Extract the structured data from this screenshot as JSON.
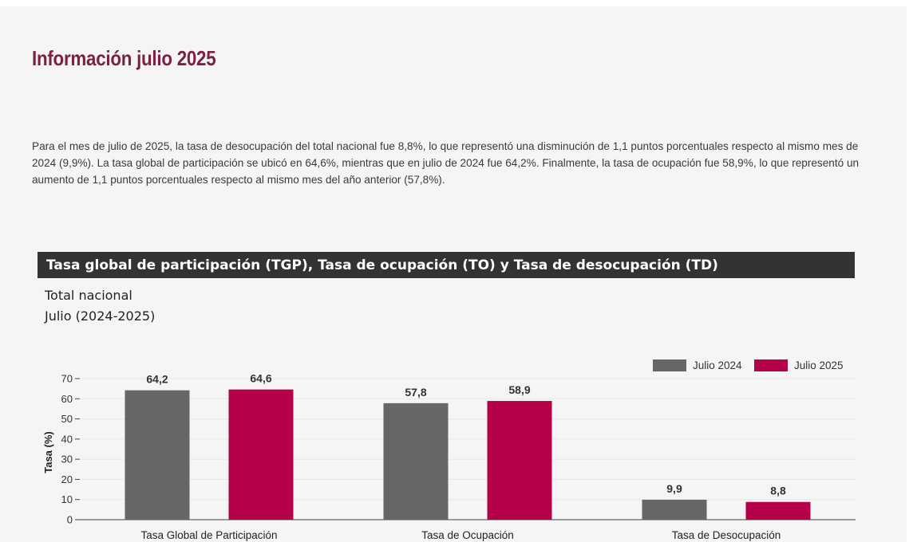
{
  "heading": "Información julio 2025",
  "paragraph": "Para el mes de julio de 2025, la tasa de desocupación del total nacional fue 8,8%, lo que representó una disminución de 1,1 puntos porcentuales respecto al mismo mes de 2024 (9,9%). La tasa global de participación se ubicó en 64,6%, mientras que en julio de 2024 fue 64,2%. Finalmente, la tasa de ocupación fue 58,9%, lo que representó un aumento de 1,1 puntos porcentuales respecto al mismo mes del año anterior (57,8%).",
  "banner_title": "Tasa global de participación (TGP), Tasa de ocupación (TO) y Tasa de desocupación (TD)",
  "subtitle_line1": "Total nacional",
  "subtitle_line2": "Julio (2024-2025)",
  "chart_data": {
    "type": "bar",
    "categories": [
      "Tasa Global de Participación",
      "Tasa de Ocupación",
      "Tasa de Desocupación"
    ],
    "series": [
      {
        "name": "Julio 2024",
        "values": [
          64.2,
          57.8,
          9.9
        ],
        "labels": [
          "64,2",
          "57,8",
          "9,9"
        ],
        "color": "#666666"
      },
      {
        "name": "Julio 2025",
        "values": [
          64.6,
          58.9,
          8.8
        ],
        "labels": [
          "64,6",
          "58,9",
          "8,8"
        ],
        "color": "#b5004a"
      }
    ],
    "ylabel": "Tasa (%)",
    "ylim": [
      0,
      70
    ],
    "yticks": [
      0,
      10,
      20,
      30,
      40,
      50,
      60,
      70
    ],
    "grid": true,
    "legend": "top-right"
  }
}
